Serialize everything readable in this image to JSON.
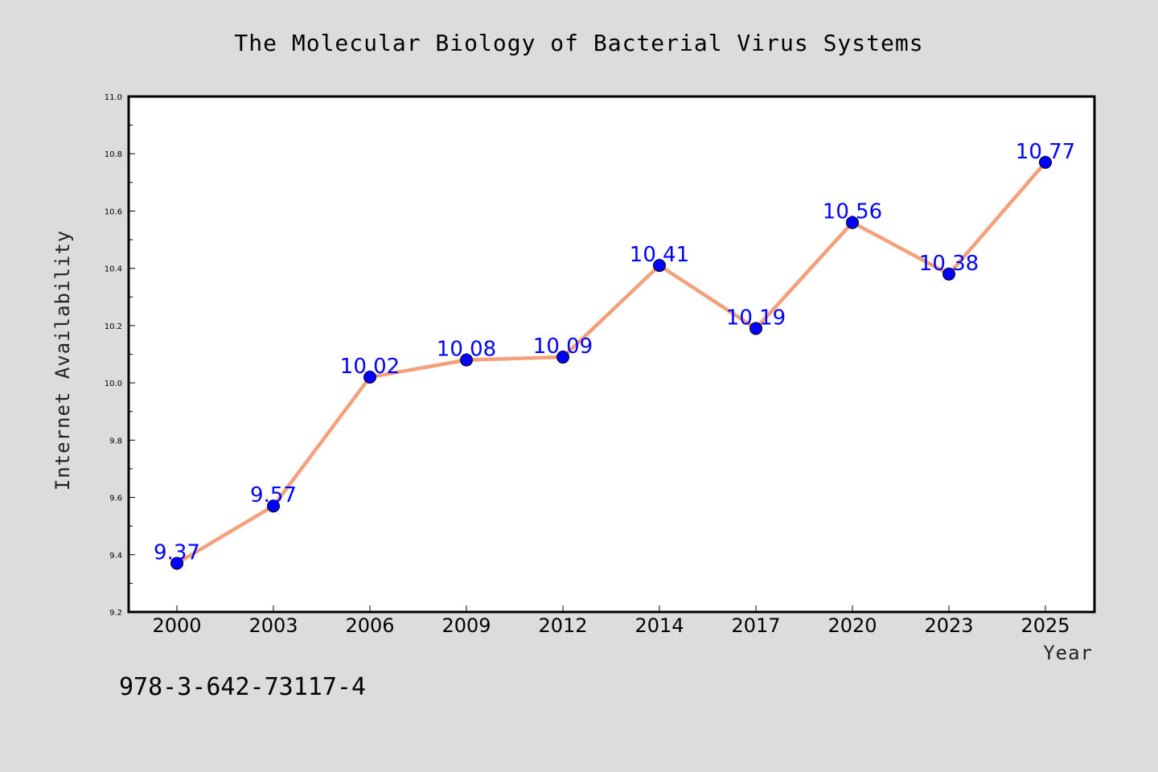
{
  "chart_data": {
    "type": "line",
    "title": "The Molecular Biology of Bacterial Virus Systems",
    "xlabel": "Year",
    "ylabel": "Internet Availability",
    "categories": [
      "2000",
      "2003",
      "2006",
      "2009",
      "2012",
      "2014",
      "2017",
      "2020",
      "2023",
      "2025"
    ],
    "series": [
      {
        "values": [
          9.37,
          9.57,
          10.02,
          10.08,
          10.09,
          10.41,
          10.19,
          10.56,
          10.38,
          10.77
        ],
        "line_color": "#f4a07a",
        "marker_color": "#0000ff"
      }
    ],
    "data_labels": [
      "9.37",
      "9.57",
      "10.02",
      "10.08",
      "10.09",
      "10.41",
      "10.19",
      "10.56",
      "10.38",
      "10.77"
    ],
    "ylim": [
      9.2,
      11.0
    ],
    "yticks": [
      "9.2",
      "9.4",
      "9.6",
      "9.8",
      "10.0",
      "10.2",
      "10.4",
      "10.6",
      "10.8",
      "11.0"
    ],
    "grid": false,
    "legend": "none"
  },
  "footer": {
    "isbn": "978-3-642-73117-4"
  },
  "colors": {
    "background": "#dcdcdc",
    "plot_background": "#ffffff"
  }
}
